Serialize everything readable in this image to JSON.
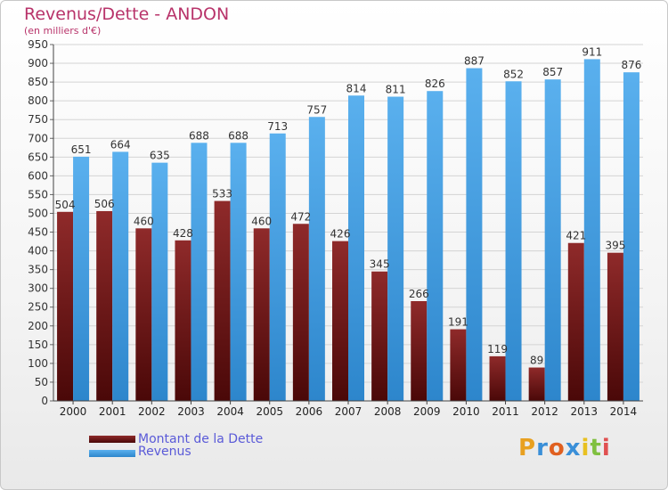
{
  "colors": {
    "debt": "#8b1a1a",
    "revenue": "#4aa3e8",
    "title": "#b8336a",
    "legend": "#5a5ad8"
  },
  "chart_data": {
    "type": "bar",
    "title": "Revenus/Dette - ANDON",
    "subtitle": "(en milliers d'€)",
    "xlabel": "",
    "ylabel": "",
    "ylim": [
      0,
      950
    ],
    "ytick_step": 50,
    "grid": true,
    "legend_position": "bottom-left",
    "categories": [
      "2000",
      "2001",
      "2002",
      "2003",
      "2004",
      "2005",
      "2006",
      "2007",
      "2008",
      "2009",
      "2010",
      "2011",
      "2012",
      "2013",
      "2014"
    ],
    "series": [
      {
        "name": "Montant de la Dette",
        "values": [
          504,
          506,
          460,
          428,
          533,
          460,
          472,
          426,
          345,
          266,
          191,
          119,
          89,
          421,
          395
        ]
      },
      {
        "name": "Revenus",
        "values": [
          651,
          664,
          635,
          688,
          688,
          713,
          757,
          814,
          811,
          826,
          887,
          852,
          857,
          911,
          876
        ]
      }
    ]
  },
  "logo": {
    "text": "Proxiti"
  }
}
